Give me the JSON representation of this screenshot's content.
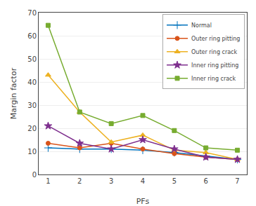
{
  "chart_data": {
    "type": "line",
    "xlabel": "PFs",
    "ylabel": "Margin factor",
    "x": [
      1,
      2,
      3,
      4,
      5,
      6,
      7
    ],
    "series": [
      {
        "name": "Normal",
        "color": "#0072BD",
        "marker": "plus",
        "values": [
          11.5,
          11.0,
          11.0,
          10.5,
          9.5,
          8.0,
          6.5
        ]
      },
      {
        "name": "Outer ring pitting",
        "color": "#D95319",
        "marker": "circle",
        "values": [
          13.5,
          11.5,
          13.5,
          11.0,
          9.0,
          7.5,
          6.5
        ]
      },
      {
        "name": "Outer ring crack",
        "color": "#EDB120",
        "marker": "triangle",
        "values": [
          43.0,
          27.0,
          14.0,
          17.0,
          10.5,
          9.5,
          6.5
        ]
      },
      {
        "name": "Inner ring pitting",
        "color": "#7E2F8E",
        "marker": "star",
        "values": [
          21.0,
          13.5,
          11.0,
          15.0,
          11.0,
          7.5,
          6.5
        ]
      },
      {
        "name": "Inner ring crack",
        "color": "#77AC30",
        "marker": "square",
        "values": [
          64.5,
          27.0,
          22.0,
          25.5,
          19.0,
          11.5,
          10.5
        ]
      }
    ],
    "xlim": [
      0.7,
      7.3
    ],
    "ylim": [
      0,
      70
    ],
    "xticks": [
      1,
      2,
      3,
      4,
      5,
      6,
      7
    ],
    "yticks": [
      0,
      10,
      20,
      30,
      40,
      50,
      60,
      70
    ],
    "grid": true,
    "legend": "upper right"
  }
}
